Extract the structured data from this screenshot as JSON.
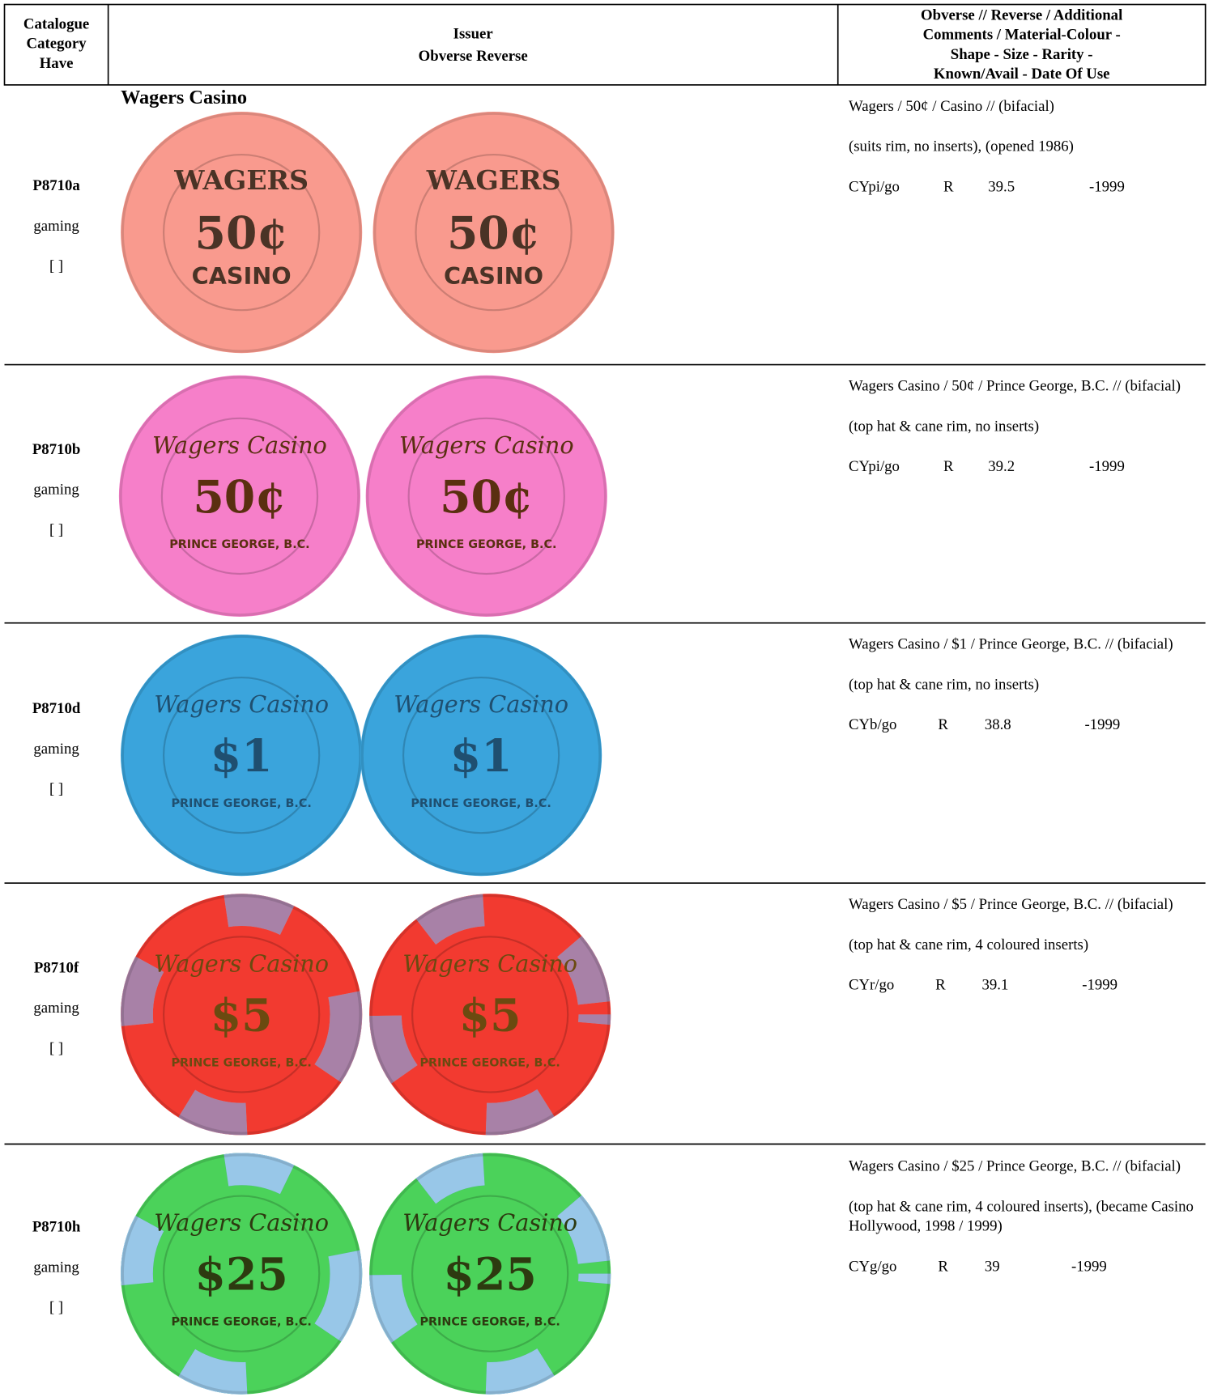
{
  "header": {
    "columns": [
      [
        "Catalogue",
        "Category",
        "Have"
      ],
      [
        "Issuer",
        "Obverse  Reverse"
      ],
      [
        "Obverse // Reverse  / Additional",
        "Comments / Material-Colour -",
        "Shape -  Size -  Rarity -",
        "Known/Avail - Date Of Use"
      ]
    ]
  },
  "issuer": "Wagers Casino",
  "rows": [
    {
      "code": "P8710a",
      "category": "gaming",
      "have": "[   ]",
      "chip_text": [
        "WAGERS",
        "50¢",
        "CASINO"
      ],
      "description": [
        "Wagers / 50¢ / Casino  //  (bifacial)",
        "(suits rim, no inserts), (opened 1986)"
      ],
      "stats": [
        "CYpi/go",
        "R",
        "39.5",
        "-1999"
      ]
    },
    {
      "code": "P8710b",
      "category": "gaming",
      "have": "[   ]",
      "chip_text": [
        "Wagers Casino",
        "50¢",
        "PRINCE GEORGE, B.C."
      ],
      "description": [
        "Wagers Casino / 50¢ / Prince George, B.C.  // (bifacial)",
        "(top hat & cane rim, no inserts)"
      ],
      "stats": [
        "CYpi/go",
        "R",
        "39.2",
        "-1999"
      ]
    },
    {
      "code": "P8710d",
      "category": "gaming",
      "have": "[   ]",
      "chip_text": [
        "Wagers Casino",
        "$1",
        "PRINCE GEORGE, B.C."
      ],
      "description": [
        "Wagers Casino / $1 / Prince George, B.C.  // (bifacial)",
        "(top hat & cane rim, no inserts)"
      ],
      "stats": [
        "CYb/go",
        "R",
        "38.8",
        "-1999"
      ]
    },
    {
      "code": "P8710f",
      "category": "gaming",
      "have": "[   ]",
      "chip_text": [
        "Wagers Casino",
        "$5",
        "PRINCE GEORGE, B.C."
      ],
      "description": [
        "Wagers Casino / $5 / Prince George, B.C.  // (bifacial)",
        "(top hat & cane rim, 4 coloured inserts)"
      ],
      "stats": [
        "CYr/go",
        "R",
        "39.1",
        "-1999"
      ]
    },
    {
      "code": "P8710h",
      "category": "gaming",
      "have": "[   ]",
      "chip_text": [
        "Wagers Casino",
        "$25",
        "PRINCE GEORGE, B.C."
      ],
      "description": [
        "Wagers Casino / $25 / Prince George, B.C.  // (bifacial)",
        "(top hat & cane rim, 4 coloured inserts), (became Casino Hollywood, 1998 / 1999)"
      ],
      "stats": [
        "CYg/go",
        "R",
        "39",
        "-1999"
      ]
    }
  ]
}
